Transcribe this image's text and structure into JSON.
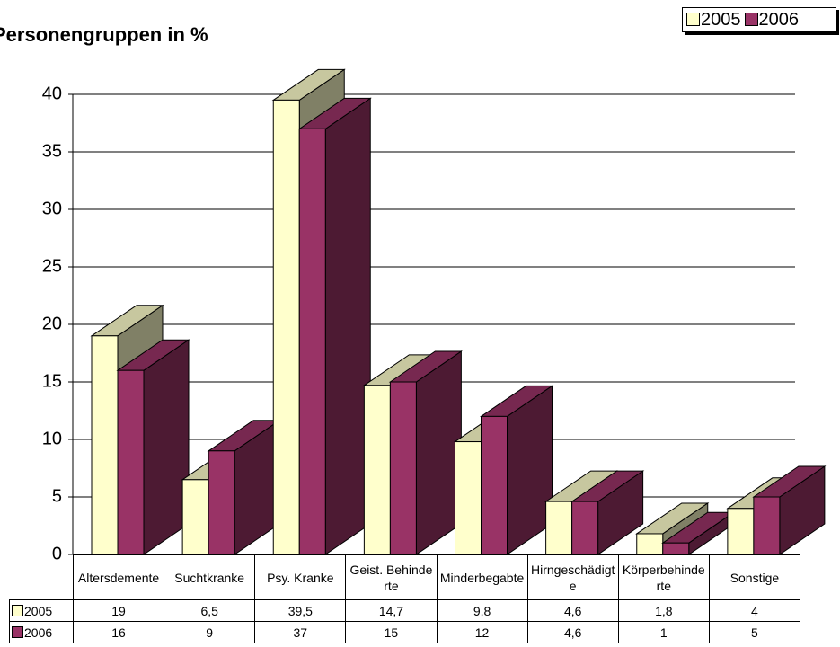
{
  "chart_data": {
    "type": "bar3d",
    "title": "Personengruppen in %",
    "categories": [
      "Altersdemente",
      "Suchtkranke",
      "Psy. Kranke",
      "Geist. Behinderte",
      "Minderbegabte",
      "Hirngeschädigte",
      "Körperbehinderte",
      "Sonstige"
    ],
    "series": [
      {
        "name": "2005",
        "color": "#ffffcc",
        "values": [
          19,
          6.5,
          39.5,
          14.7,
          9.8,
          4.6,
          1.8,
          4
        ],
        "value_labels": [
          "19",
          "6,5",
          "39,5",
          "14,7",
          "9,8",
          "4,6",
          "1,8",
          "4"
        ]
      },
      {
        "name": "2006",
        "color": "#993366",
        "values": [
          16,
          9,
          37,
          15,
          12,
          4.6,
          1,
          5
        ],
        "value_labels": [
          "16",
          "9",
          "37",
          "15",
          "12",
          "4,6",
          "1",
          "5"
        ]
      }
    ],
    "ylim": [
      0,
      40
    ],
    "yticks": [
      0,
      5,
      10,
      15,
      20,
      25,
      30,
      35,
      40
    ],
    "grid": true,
    "legend": "top-right"
  }
}
